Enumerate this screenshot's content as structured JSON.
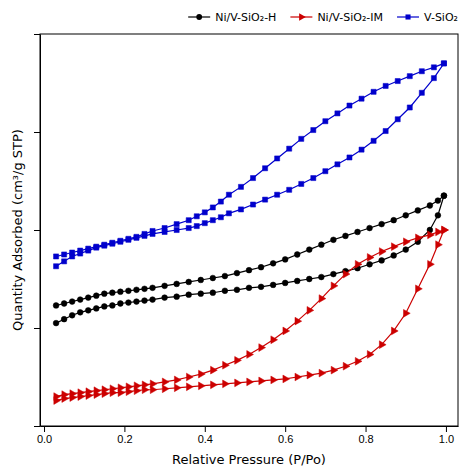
{
  "chart_data": {
    "type": "line",
    "xlabel": "Relative Pressure (P/Po)",
    "ylabel": "Quantity Adsorbed (cm³/g STP)",
    "xlim": [
      -0.01,
      1.03
    ],
    "xticks": [
      {
        "value": 0,
        "label": "0.0"
      },
      0.2,
      0.4,
      0.6,
      0.8,
      {
        "value": 1,
        "label": "1.0"
      }
    ],
    "ylim": [
      0,
      400
    ],
    "yticks": [
      0,
      100,
      200,
      300,
      400
    ],
    "tick_labels": "x",
    "grid": false,
    "legend": "upper right",
    "series": [
      {
        "name": "Ni/V-SiO₂-H",
        "color": "#000000",
        "marker": "circle",
        "line_style": "solid",
        "x": [
          0.03,
          0.05,
          0.07,
          0.09,
          0.11,
          0.13,
          0.15,
          0.17,
          0.19,
          0.21,
          0.23,
          0.25,
          0.27,
          0.3,
          0.33,
          0.36,
          0.39,
          0.42,
          0.45,
          0.48,
          0.51,
          0.54,
          0.57,
          0.6,
          0.63,
          0.66,
          0.69,
          0.72,
          0.75,
          0.78,
          0.81,
          0.84,
          0.87,
          0.9,
          0.93,
          0.96,
          0.98,
          0.995
        ],
        "values": [
          105,
          109,
          113,
          116,
          118,
          120,
          122,
          123,
          125,
          126,
          127,
          128,
          129,
          131,
          132,
          134,
          135,
          136,
          138,
          139,
          141,
          142,
          144,
          146,
          148,
          150,
          152,
          155,
          158,
          161,
          165,
          169,
          174,
          180,
          188,
          200,
          215,
          235
        ]
      },
      {
        "color": "#000000",
        "marker": "circle",
        "line_style": "solid",
        "x": [
          0.995,
          0.98,
          0.96,
          0.93,
          0.9,
          0.87,
          0.84,
          0.81,
          0.78,
          0.75,
          0.72,
          0.69,
          0.66,
          0.63,
          0.6,
          0.57,
          0.54,
          0.51,
          0.48,
          0.45,
          0.42,
          0.39,
          0.36,
          0.33,
          0.3,
          0.27,
          0.25,
          0.23,
          0.21,
          0.19,
          0.17,
          0.15,
          0.13,
          0.11,
          0.09,
          0.07,
          0.05,
          0.03
        ],
        "values": [
          235,
          230,
          225,
          220,
          215,
          210,
          206,
          202,
          198,
          194,
          190,
          185,
          180,
          175,
          170,
          166,
          162,
          159,
          156,
          153,
          151,
          149,
          147,
          145,
          143,
          141,
          140,
          139,
          138,
          137,
          136,
          135,
          133,
          131,
          129,
          127,
          125,
          123
        ]
      },
      {
        "name": "Ni/V-SiO₂-IM",
        "color": "#cc0000",
        "marker": "triangle-right",
        "line_style": "solid",
        "x": [
          0.03,
          0.05,
          0.07,
          0.09,
          0.11,
          0.13,
          0.15,
          0.17,
          0.19,
          0.21,
          0.23,
          0.25,
          0.27,
          0.3,
          0.33,
          0.36,
          0.39,
          0.42,
          0.45,
          0.48,
          0.51,
          0.54,
          0.57,
          0.6,
          0.63,
          0.66,
          0.69,
          0.72,
          0.75,
          0.78,
          0.81,
          0.84,
          0.87,
          0.9,
          0.93,
          0.96,
          0.98,
          0.995
        ],
        "values": [
          26,
          28,
          29,
          30,
          31,
          32,
          33,
          34,
          34,
          35,
          36,
          37,
          37,
          38,
          39,
          40,
          41,
          42,
          43,
          44,
          45,
          46,
          47,
          48,
          50,
          52,
          54,
          57,
          61,
          66,
          73,
          83,
          97,
          115,
          140,
          165,
          185,
          200
        ]
      },
      {
        "color": "#cc0000",
        "marker": "triangle-right",
        "line_style": "solid",
        "x": [
          0.995,
          0.98,
          0.96,
          0.93,
          0.9,
          0.87,
          0.84,
          0.81,
          0.78,
          0.75,
          0.72,
          0.69,
          0.66,
          0.63,
          0.6,
          0.57,
          0.54,
          0.51,
          0.48,
          0.45,
          0.42,
          0.39,
          0.36,
          0.33,
          0.3,
          0.27,
          0.25,
          0.23,
          0.21,
          0.19,
          0.17,
          0.15,
          0.13,
          0.11,
          0.09,
          0.07,
          0.05,
          0.03
        ],
        "values": [
          200,
          198,
          195,
          192,
          188,
          183,
          178,
          172,
          165,
          155,
          143,
          130,
          118,
          107,
          97,
          88,
          80,
          73,
          67,
          62,
          57,
          53,
          50,
          47,
          45,
          43,
          42,
          41,
          40,
          39,
          38,
          37,
          36,
          35,
          34,
          33,
          32,
          30
        ]
      },
      {
        "name": "V-SiO₂",
        "color": "#0000cc",
        "marker": "square",
        "line_style": "solid",
        "x": [
          0.03,
          0.05,
          0.07,
          0.09,
          0.11,
          0.13,
          0.15,
          0.17,
          0.19,
          0.21,
          0.23,
          0.25,
          0.27,
          0.3,
          0.33,
          0.36,
          0.38,
          0.4,
          0.42,
          0.44,
          0.46,
          0.49,
          0.52,
          0.55,
          0.58,
          0.61,
          0.64,
          0.67,
          0.7,
          0.73,
          0.76,
          0.79,
          0.82,
          0.85,
          0.88,
          0.91,
          0.94,
          0.97,
          0.995
        ],
        "values": [
          163,
          168,
          173,
          176,
          179,
          182,
          184,
          186,
          188,
          190,
          192,
          194,
          196,
          198,
          200,
          202,
          204,
          207,
          210,
          213,
          217,
          221,
          226,
          231,
          236,
          241,
          247,
          253,
          260,
          267,
          274,
          282,
          291,
          301,
          313,
          325,
          340,
          355,
          370
        ]
      },
      {
        "color": "#0000cc",
        "marker": "square",
        "line_style": "solid",
        "x": [
          0.995,
          0.97,
          0.94,
          0.91,
          0.88,
          0.85,
          0.82,
          0.79,
          0.76,
          0.73,
          0.7,
          0.67,
          0.64,
          0.61,
          0.58,
          0.55,
          0.52,
          0.49,
          0.46,
          0.44,
          0.42,
          0.4,
          0.38,
          0.36,
          0.33,
          0.3,
          0.27,
          0.25,
          0.23,
          0.21,
          0.19,
          0.17,
          0.15,
          0.13,
          0.11,
          0.09,
          0.07,
          0.05,
          0.03
        ],
        "values": [
          370,
          366,
          362,
          357,
          352,
          347,
          341,
          334,
          327,
          319,
          311,
          302,
          293,
          283,
          273,
          263,
          253,
          244,
          236,
          229,
          223,
          218,
          214,
          210,
          206,
          202,
          199,
          196,
          193,
          191,
          189,
          187,
          185,
          183,
          181,
          179,
          177,
          175,
          173
        ]
      }
    ]
  }
}
